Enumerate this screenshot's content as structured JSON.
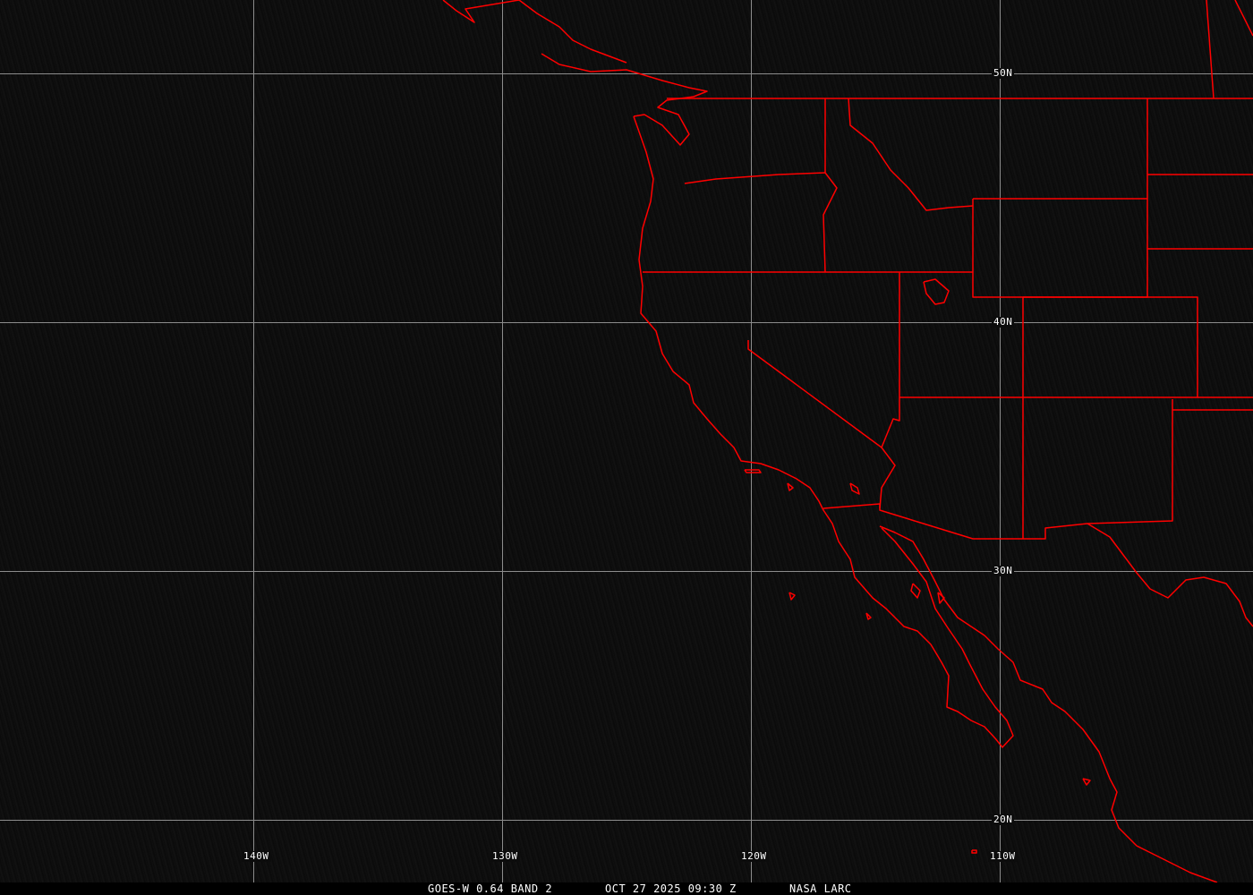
{
  "map": {
    "grid": {
      "longitudes": [
        "140W",
        "130W",
        "120W",
        "110W"
      ],
      "latitudes": [
        "50N",
        "40N",
        "30N",
        "20N"
      ],
      "grid_color": "#8c8c8c"
    },
    "outline_color": "#ff0000",
    "background_color": "#0e0e0e"
  },
  "footer": {
    "product": "GOES-W 0.64 BAND 2",
    "datetime": "OCT 27 2025 09:30 Z",
    "source": "NASA LARC"
  }
}
